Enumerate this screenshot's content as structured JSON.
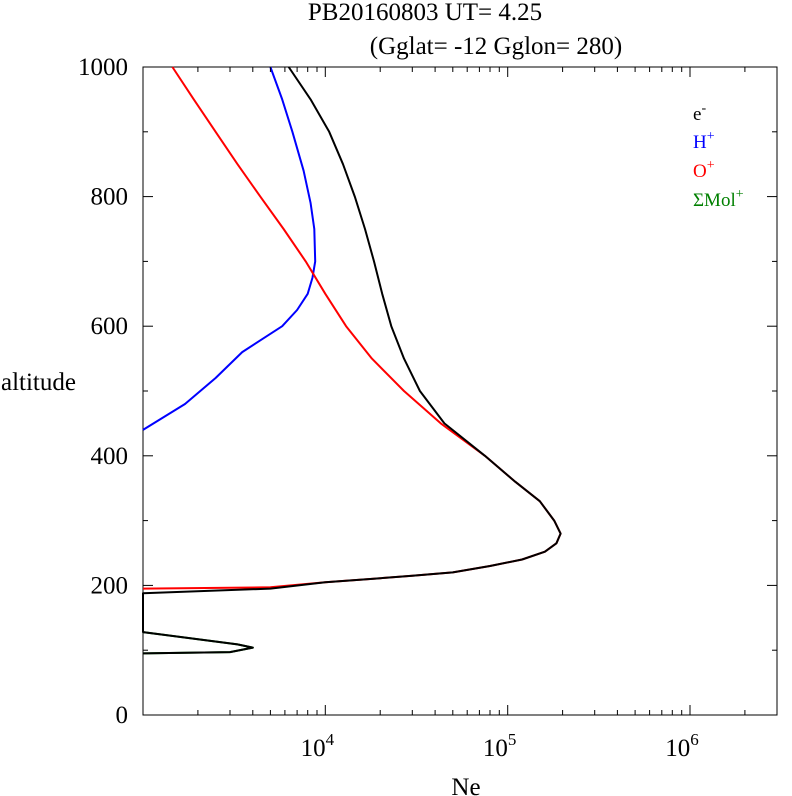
{
  "chart_data": {
    "type": "line",
    "title": "PB20160803   UT=  4.25",
    "subtitle": "(Gglat= -12   Gglon=  280)",
    "xlabel": "Ne",
    "ylabel": "altitude",
    "xscale": "log",
    "xlim": [
      1000,
      3000000
    ],
    "ylim": [
      0,
      1000
    ],
    "xticks": [
      {
        "value": 10000,
        "base": "10",
        "exp": "4"
      },
      {
        "value": 100000,
        "base": "10",
        "exp": "5"
      },
      {
        "value": 1000000,
        "base": "10",
        "exp": "6"
      }
    ],
    "yticks": [
      0,
      200,
      400,
      600,
      800,
      1000
    ],
    "yticks_labels": [
      "0",
      "200",
      "400",
      "600",
      "800",
      "1000"
    ],
    "grid": false,
    "legend_position": "top-right",
    "series": [
      {
        "name": "e",
        "sup": "-",
        "color": "#000000",
        "points": [
          [
            1000,
            95
          ],
          [
            3000,
            97
          ],
          [
            4000,
            104
          ],
          [
            3300,
            109
          ],
          [
            1000,
            128
          ],
          [
            1000,
            135
          ],
          [
            1000,
            188
          ],
          [
            5000,
            195
          ],
          [
            10000,
            205
          ],
          [
            18000,
            210
          ],
          [
            30000,
            215
          ],
          [
            50000,
            220
          ],
          [
            80000,
            230
          ],
          [
            120000,
            240
          ],
          [
            160000,
            252
          ],
          [
            185000,
            265
          ],
          [
            195000,
            280
          ],
          [
            180000,
            300
          ],
          [
            150000,
            330
          ],
          [
            110000,
            360
          ],
          [
            75000,
            400
          ],
          [
            45000,
            450
          ],
          [
            33000,
            500
          ],
          [
            27000,
            550
          ],
          [
            23000,
            600
          ],
          [
            20500,
            650
          ],
          [
            18500,
            700
          ],
          [
            16500,
            750
          ],
          [
            14500,
            800
          ],
          [
            12500,
            850
          ],
          [
            10500,
            900
          ],
          [
            8300,
            950
          ],
          [
            6300,
            1000
          ]
        ]
      },
      {
        "name": "H",
        "sup": "+",
        "color": "#0000ff",
        "points": [
          [
            1000,
            440
          ],
          [
            1700,
            480
          ],
          [
            2500,
            520
          ],
          [
            3500,
            560
          ],
          [
            4500,
            580
          ],
          [
            5800,
            600
          ],
          [
            7000,
            625
          ],
          [
            8000,
            650
          ],
          [
            8500,
            675
          ],
          [
            8800,
            700
          ],
          [
            8700,
            750
          ],
          [
            8300,
            790
          ],
          [
            7600,
            840
          ],
          [
            6600,
            900
          ],
          [
            5800,
            950
          ],
          [
            5000,
            1000
          ]
        ]
      },
      {
        "name": "O",
        "sup": "+",
        "color": "#ff0000",
        "points": [
          [
            1000,
            195
          ],
          [
            5000,
            197
          ],
          [
            10000,
            205
          ],
          [
            18000,
            210
          ],
          [
            30000,
            215
          ],
          [
            50000,
            220
          ],
          [
            80000,
            230
          ],
          [
            120000,
            240
          ],
          [
            160000,
            252
          ],
          [
            185000,
            265
          ],
          [
            195000,
            280
          ],
          [
            180000,
            300
          ],
          [
            150000,
            330
          ],
          [
            110000,
            360
          ],
          [
            75000,
            400
          ],
          [
            43000,
            450
          ],
          [
            27000,
            500
          ],
          [
            18000,
            550
          ],
          [
            13000,
            600
          ],
          [
            10000,
            650
          ],
          [
            7800,
            700
          ],
          [
            5900,
            750
          ],
          [
            4400,
            800
          ],
          [
            3300,
            850
          ],
          [
            2500,
            900
          ],
          [
            1900,
            950
          ],
          [
            1450,
            1000
          ]
        ]
      },
      {
        "name": "ΣMol",
        "sup": "+",
        "color": "#008000",
        "points": [
          [
            1000,
            95
          ],
          [
            3000,
            97
          ],
          [
            4000,
            104
          ],
          [
            3300,
            109
          ],
          [
            1000,
            128
          ]
        ]
      }
    ]
  }
}
